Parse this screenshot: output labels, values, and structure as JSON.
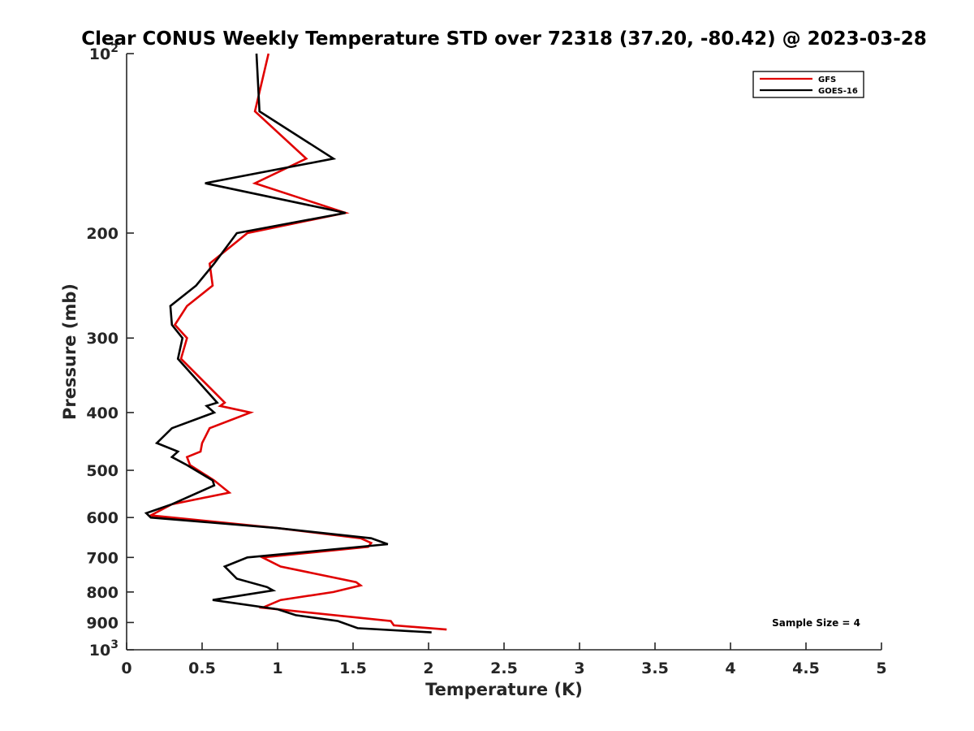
{
  "chart_data": {
    "type": "line",
    "title": "Clear CONUS Weekly Temperature STD over 72318 (37.20, -80.42) @ 2023-03-28",
    "xlabel": "Temperature (K)",
    "ylabel": "Pressure (mb)",
    "xlim": [
      0,
      5
    ],
    "ylim": [
      100,
      1000
    ],
    "y_scale": "log",
    "y_reversed": true,
    "grid": false,
    "legend_position": "top-right",
    "x_ticks": [
      {
        "value": 0,
        "label": "0"
      },
      {
        "value": 0.5,
        "label": "0.5"
      },
      {
        "value": 1,
        "label": "1"
      },
      {
        "value": 1.5,
        "label": "1.5"
      },
      {
        "value": 2,
        "label": "2"
      },
      {
        "value": 2.5,
        "label": "2.5"
      },
      {
        "value": 3,
        "label": "3"
      },
      {
        "value": 3.5,
        "label": "3.5"
      },
      {
        "value": 4,
        "label": "4"
      },
      {
        "value": 4.5,
        "label": "4.5"
      },
      {
        "value": 5,
        "label": "5"
      }
    ],
    "y_ticks": [
      {
        "value": 100,
        "base": "10",
        "exp": "2"
      },
      {
        "value": 200,
        "label": "200"
      },
      {
        "value": 300,
        "label": "300"
      },
      {
        "value": 400,
        "label": "400"
      },
      {
        "value": 500,
        "label": "500"
      },
      {
        "value": 600,
        "label": "600"
      },
      {
        "value": 700,
        "label": "700"
      },
      {
        "value": 800,
        "label": "800"
      },
      {
        "value": 900,
        "label": "900"
      },
      {
        "value": 1000,
        "base": "10",
        "exp": "3"
      }
    ],
    "series": [
      {
        "name": "GFS",
        "color": "#e00000",
        "points": [
          [
            0.94,
            100
          ],
          [
            0.85,
            125
          ],
          [
            1.19,
            150
          ],
          [
            0.85,
            165
          ],
          [
            1.45,
            185
          ],
          [
            0.8,
            200
          ],
          [
            0.55,
            225
          ],
          [
            0.57,
            245
          ],
          [
            0.4,
            265
          ],
          [
            0.32,
            285
          ],
          [
            0.4,
            300
          ],
          [
            0.36,
            325
          ],
          [
            0.65,
            385
          ],
          [
            0.62,
            390
          ],
          [
            0.82,
            400
          ],
          [
            0.55,
            425
          ],
          [
            0.5,
            450
          ],
          [
            0.49,
            465
          ],
          [
            0.4,
            475
          ],
          [
            0.42,
            490
          ],
          [
            0.58,
            520
          ],
          [
            0.68,
            545
          ],
          [
            0.3,
            570
          ],
          [
            0.16,
            595
          ],
          [
            1.0,
            625
          ],
          [
            1.55,
            650
          ],
          [
            1.62,
            662
          ],
          [
            1.6,
            672
          ],
          [
            0.9,
            700
          ],
          [
            1.02,
            725
          ],
          [
            1.52,
            770
          ],
          [
            1.55,
            780
          ],
          [
            1.37,
            800
          ],
          [
            1.02,
            825
          ],
          [
            0.9,
            850
          ],
          [
            1.75,
            895
          ],
          [
            1.77,
            910
          ],
          [
            2.12,
            925
          ]
        ]
      },
      {
        "name": "GOES-16",
        "color": "#000000",
        "points": [
          [
            0.86,
            100
          ],
          [
            0.88,
            125
          ],
          [
            1.37,
            150
          ],
          [
            0.52,
            165
          ],
          [
            1.45,
            185
          ],
          [
            0.73,
            200
          ],
          [
            0.58,
            225
          ],
          [
            0.46,
            245
          ],
          [
            0.29,
            265
          ],
          [
            0.3,
            285
          ],
          [
            0.37,
            300
          ],
          [
            0.34,
            325
          ],
          [
            0.6,
            385
          ],
          [
            0.53,
            390
          ],
          [
            0.58,
            400
          ],
          [
            0.3,
            425
          ],
          [
            0.2,
            450
          ],
          [
            0.34,
            465
          ],
          [
            0.3,
            475
          ],
          [
            0.4,
            490
          ],
          [
            0.57,
            520
          ],
          [
            0.58,
            530
          ],
          [
            0.3,
            570
          ],
          [
            0.13,
            590
          ],
          [
            0.16,
            600
          ],
          [
            1.0,
            625
          ],
          [
            1.62,
            650
          ],
          [
            1.73,
            665
          ],
          [
            0.8,
            700
          ],
          [
            0.65,
            725
          ],
          [
            0.73,
            760
          ],
          [
            0.93,
            785
          ],
          [
            0.97,
            795
          ],
          [
            0.57,
            825
          ],
          [
            1.0,
            855
          ],
          [
            1.12,
            875
          ],
          [
            1.4,
            895
          ],
          [
            1.53,
            920
          ],
          [
            2.02,
            935
          ]
        ]
      }
    ],
    "annotation": "Sample Size = 4"
  }
}
